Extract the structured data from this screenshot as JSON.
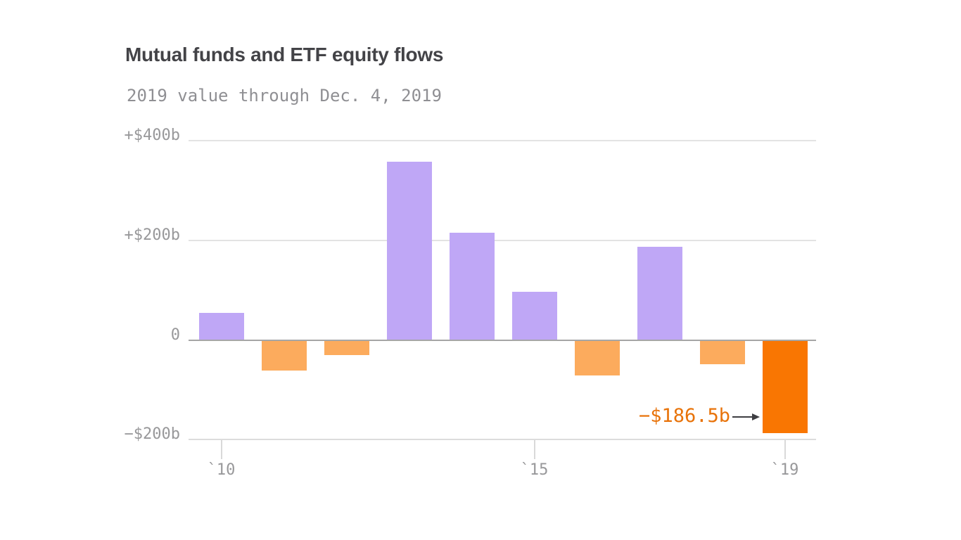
{
  "chart": {
    "title": "Mutual funds and ETF equity flows",
    "subtitle": "2019 value through Dec. 4, 2019"
  },
  "chart_data": {
    "type": "bar",
    "title": "Mutual funds and ETF equity flows",
    "subtitle": "2019 value through Dec. 4, 2019",
    "unit": "billions of US dollars",
    "categories": [
      2010,
      2011,
      2012,
      2013,
      2014,
      2015,
      2016,
      2017,
      2018,
      2019
    ],
    "values": [
      54,
      -61,
      -30,
      358,
      215,
      97,
      -71,
      187,
      -49,
      -186.5
    ],
    "ylim": [
      -200,
      400
    ],
    "grid": true,
    "legend": false,
    "y_ticks": [
      {
        "value": 400,
        "label": "+$400b"
      },
      {
        "value": 200,
        "label": "+$200b"
      },
      {
        "value": 0,
        "label": "0"
      },
      {
        "value": -200,
        "label": "−$200b"
      }
    ],
    "x_ticks": [
      {
        "year": 2010,
        "label": "`10"
      },
      {
        "year": 2015,
        "label": "`15"
      },
      {
        "year": 2019,
        "label": "`19"
      }
    ],
    "annotation": {
      "text": "−$186.5b",
      "target_year": 2019
    },
    "colors": {
      "positive_bar": "#bfa7f6",
      "negative_bar": "#fcab5d",
      "highlight_bar": "#f97602",
      "annotation_text": "#e8730a",
      "arrow": "#3e3e42",
      "title_text": "#434347",
      "subtitle_text": "#8f8f93",
      "axis_text": "#98989a",
      "gridline": "#e3e3e3",
      "zero_line": "#a6a6a6",
      "axis_line": "#dcdcdc"
    }
  }
}
